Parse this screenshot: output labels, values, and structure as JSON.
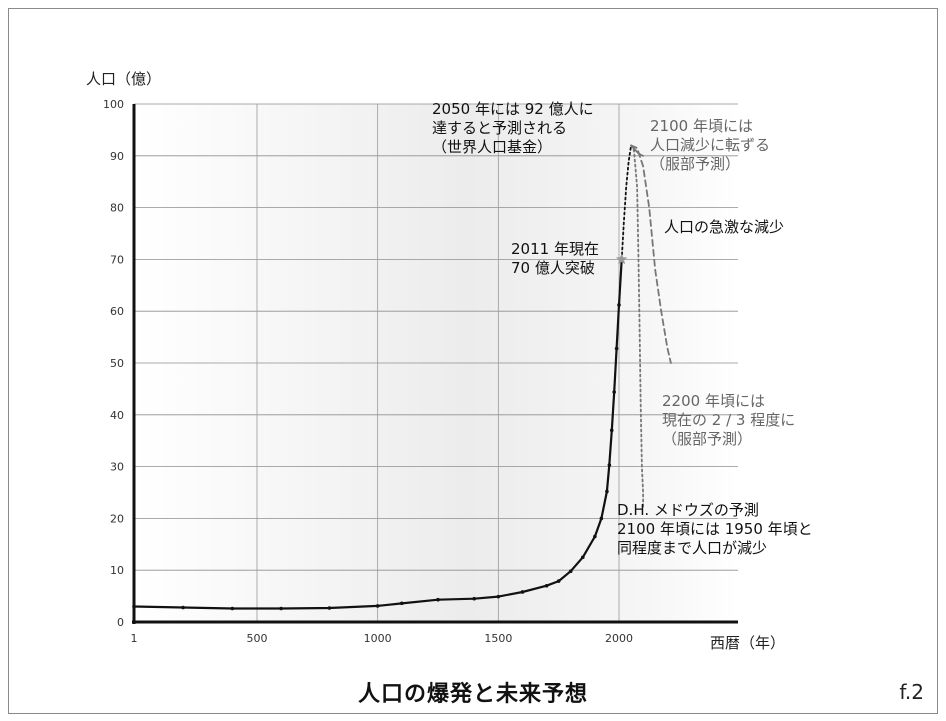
{
  "page": {
    "title": "人口の爆発と未来予想",
    "figure_number": "f.2"
  },
  "chart_data": {
    "type": "line",
    "title": "人口の爆発と未来予想",
    "ylabel": "人口（億）",
    "xlabel": "西暦（年）",
    "xlim": [
      1,
      2500
    ],
    "ylim": [
      0,
      100
    ],
    "xticks": [
      {
        "value": 1,
        "label": "1"
      },
      {
        "value": 500,
        "label": "500"
      },
      {
        "value": 1000,
        "label": "1000"
      },
      {
        "value": 1500,
        "label": "1500"
      },
      {
        "value": 2000,
        "label": "2000"
      }
    ],
    "yticks": [
      0,
      10,
      20,
      30,
      40,
      50,
      60,
      70,
      80,
      90,
      100
    ],
    "grid": true,
    "series": [
      {
        "style": "solid",
        "color": "#111111",
        "x": [
          1,
          200,
          400,
          600,
          800,
          1000,
          1100,
          1250,
          1400,
          1500,
          1600,
          1700,
          1750,
          1800,
          1850,
          1900,
          1927,
          1950,
          1960,
          1970,
          1980,
          1990,
          2000,
          2011
        ],
        "y": [
          3,
          2.8,
          2.6,
          2.6,
          2.7,
          3.1,
          3.6,
          4.3,
          4.5,
          4.9,
          5.8,
          7.0,
          7.9,
          9.8,
          12.5,
          16.5,
          20.0,
          25.2,
          30.3,
          37.0,
          44.4,
          52.8,
          61.2,
          70
        ]
      },
      {
        "style": "dotted",
        "color": "#111111",
        "x": [
          2011,
          2020,
          2030,
          2040,
          2050
        ],
        "y": [
          70,
          77,
          84,
          89,
          92
        ]
      },
      {
        "style": "solid",
        "color": "#777777",
        "x": [
          2050,
          2060,
          2070,
          2080,
          2090,
          2100
        ],
        "y": [
          92,
          91.5,
          91,
          90.5,
          90.2,
          90
        ]
      },
      {
        "style": "dashed",
        "color": "#777777",
        "x": [
          2050,
          2075,
          2100,
          2125,
          2150,
          2175,
          2200,
          2215
        ],
        "y": [
          92,
          91.5,
          88,
          80,
          68,
          60,
          53,
          50
        ]
      },
      {
        "style": "dotted",
        "color": "#777777",
        "x": [
          2050,
          2062,
          2075,
          2080,
          2085,
          2090,
          2095,
          2100,
          2100
        ],
        "y": [
          92,
          91,
          84,
          72,
          58,
          42,
          30,
          25,
          22
        ]
      }
    ],
    "markers": [
      {
        "x": 2011,
        "y": 70,
        "shape": "star",
        "color": "#999999"
      }
    ],
    "annotations": {
      "a2050": {
        "lines": [
          "2050 年には 92 億人に",
          "達すると予測される",
          "（世界人口基金）"
        ],
        "color": "#111111"
      },
      "a2011": {
        "lines": [
          "2011 年現在",
          "70 億人突破"
        ],
        "color": "#111111"
      },
      "a2100": {
        "lines": [
          "2100 年頃には",
          "人口減少に転ずる",
          "（服部予測）"
        ],
        "color": "#666666"
      },
      "decline": {
        "lines": [
          "人口の急激な減少"
        ],
        "color": "#111111"
      },
      "a2200": {
        "lines": [
          "2200 年頃には",
          "現在の 2 / 3 程度に",
          "（服部予測）"
        ],
        "color": "#666666"
      },
      "meadows": {
        "lines": [
          "D.H. メドウズの予測",
          "2100 年頃には 1950 年頃と",
          "同程度まで人口が減少"
        ],
        "color": "#111111"
      }
    }
  }
}
